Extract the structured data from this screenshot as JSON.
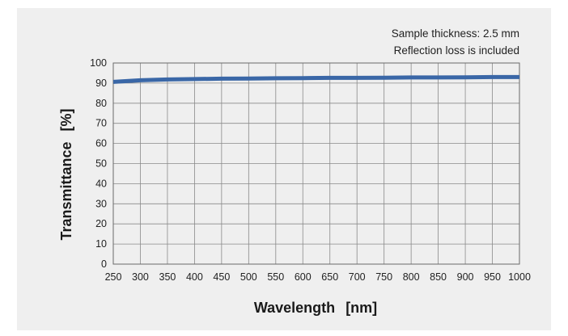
{
  "chart_data": {
    "type": "line",
    "title": "",
    "annotations": [
      "Sample thickness: 2.5 mm",
      "Reflection loss is included"
    ],
    "xlabel": "Wavelength",
    "xunit": "[nm]",
    "ylabel": "Transmittance",
    "yunit": "[%]",
    "xlim": [
      250,
      1000
    ],
    "ylim": [
      0,
      100
    ],
    "xticks": [
      250,
      300,
      350,
      400,
      450,
      500,
      550,
      600,
      650,
      700,
      750,
      800,
      850,
      900,
      950,
      1000
    ],
    "yticks": [
      0,
      10,
      20,
      30,
      40,
      50,
      60,
      70,
      80,
      90,
      100
    ],
    "grid": true,
    "series": [
      {
        "color": "#3a67a7",
        "x": [
          250,
          275,
          300,
          350,
          400,
          450,
          500,
          550,
          600,
          650,
          700,
          750,
          800,
          850,
          900,
          950,
          1000
        ],
        "y": [
          90.6,
          91.0,
          91.4,
          91.8,
          92.0,
          92.2,
          92.3,
          92.4,
          92.5,
          92.6,
          92.6,
          92.7,
          92.8,
          92.8,
          92.9,
          93.0,
          93.0
        ]
      }
    ]
  }
}
